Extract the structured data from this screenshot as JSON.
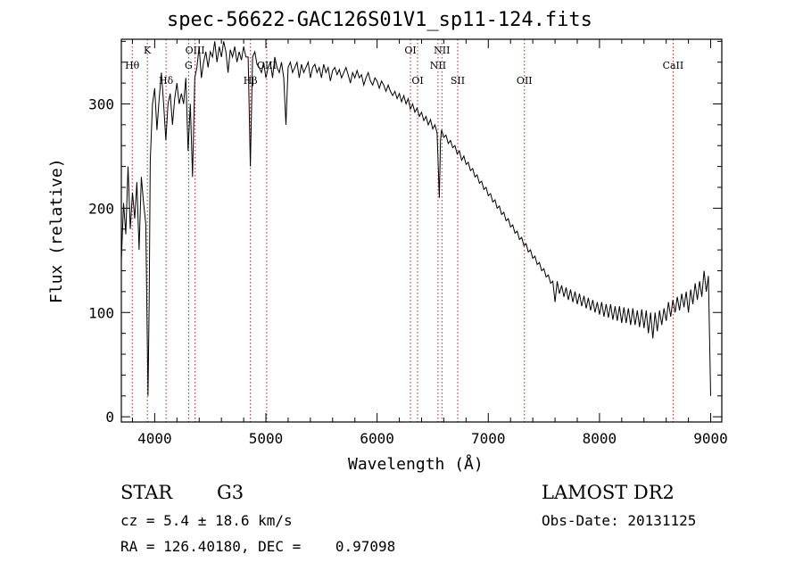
{
  "chart_data": {
    "type": "line",
    "title": "spec-56622-GAC126S01V1_sp11-124.fits",
    "xlabel": "Wavelength (Å)",
    "ylabel": "Flux (relative)",
    "xlim": [
      3700,
      9100
    ],
    "ylim": [
      -5,
      362
    ],
    "xticks": [
      4000,
      5000,
      6000,
      7000,
      8000,
      9000
    ],
    "yticks": [
      0,
      100,
      200,
      300
    ],
    "grid": false,
    "series": [
      {
        "points": [
          [
            3700,
            150
          ],
          [
            3720,
            205
          ],
          [
            3740,
            175
          ],
          [
            3760,
            240
          ],
          [
            3780,
            180
          ],
          [
            3800,
            215
          ],
          [
            3820,
            190
          ],
          [
            3840,
            225
          ],
          [
            3860,
            160
          ],
          [
            3880,
            230
          ],
          [
            3900,
            205
          ],
          [
            3920,
            185
          ],
          [
            3940,
            20
          ],
          [
            3950,
            110
          ],
          [
            3960,
            245
          ],
          [
            3980,
            300
          ],
          [
            4000,
            315
          ],
          [
            4020,
            275
          ],
          [
            4040,
            305
          ],
          [
            4060,
            330
          ],
          [
            4080,
            300
          ],
          [
            4100,
            265
          ],
          [
            4120,
            300
          ],
          [
            4140,
            310
          ],
          [
            4160,
            280
          ],
          [
            4180,
            305
          ],
          [
            4200,
            320
          ],
          [
            4220,
            300
          ],
          [
            4240,
            310
          ],
          [
            4260,
            300
          ],
          [
            4280,
            325
          ],
          [
            4300,
            255
          ],
          [
            4320,
            300
          ],
          [
            4340,
            230
          ],
          [
            4360,
            325
          ],
          [
            4380,
            335
          ],
          [
            4400,
            355
          ],
          [
            4420,
            325
          ],
          [
            4440,
            340
          ],
          [
            4460,
            350
          ],
          [
            4480,
            335
          ],
          [
            4500,
            350
          ],
          [
            4520,
            345
          ],
          [
            4540,
            360
          ],
          [
            4560,
            340
          ],
          [
            4580,
            355
          ],
          [
            4600,
            345
          ],
          [
            4620,
            360
          ],
          [
            4640,
            350
          ],
          [
            4660,
            330
          ],
          [
            4680,
            352
          ],
          [
            4700,
            345
          ],
          [
            4720,
            355
          ],
          [
            4740,
            340
          ],
          [
            4760,
            350
          ],
          [
            4780,
            342
          ],
          [
            4800,
            355
          ],
          [
            4820,
            345
          ],
          [
            4840,
            345
          ],
          [
            4860,
            240
          ],
          [
            4880,
            345
          ],
          [
            4900,
            350
          ],
          [
            4920,
            338
          ],
          [
            4940,
            335
          ],
          [
            4960,
            330
          ],
          [
            4980,
            340
          ],
          [
            5000,
            325
          ],
          [
            5020,
            335
          ],
          [
            5040,
            340
          ],
          [
            5060,
            325
          ],
          [
            5080,
            345
          ],
          [
            5100,
            335
          ],
          [
            5120,
            330
          ],
          [
            5140,
            340
          ],
          [
            5160,
            325
          ],
          [
            5180,
            280
          ],
          [
            5200,
            335
          ],
          [
            5220,
            340
          ],
          [
            5240,
            330
          ],
          [
            5260,
            335
          ],
          [
            5280,
            340
          ],
          [
            5300,
            325
          ],
          [
            5320,
            338
          ],
          [
            5340,
            330
          ],
          [
            5360,
            335
          ],
          [
            5380,
            340
          ],
          [
            5400,
            325
          ],
          [
            5420,
            335
          ],
          [
            5440,
            338
          ],
          [
            5460,
            330
          ],
          [
            5480,
            335
          ],
          [
            5500,
            325
          ],
          [
            5520,
            338
          ],
          [
            5540,
            330
          ],
          [
            5560,
            335
          ],
          [
            5580,
            322
          ],
          [
            5600,
            332
          ],
          [
            5620,
            335
          ],
          [
            5640,
            328
          ],
          [
            5660,
            333
          ],
          [
            5680,
            325
          ],
          [
            5700,
            330
          ],
          [
            5720,
            335
          ],
          [
            5740,
            328
          ],
          [
            5760,
            320
          ],
          [
            5780,
            330
          ],
          [
            5800,
            325
          ],
          [
            5820,
            332
          ],
          [
            5840,
            325
          ],
          [
            5860,
            328
          ],
          [
            5880,
            318
          ],
          [
            5900,
            325
          ],
          [
            5920,
            330
          ],
          [
            5940,
            322
          ],
          [
            5960,
            318
          ],
          [
            5980,
            325
          ],
          [
            6000,
            322
          ],
          [
            6020,
            315
          ],
          [
            6040,
            322
          ],
          [
            6060,
            318
          ],
          [
            6080,
            312
          ],
          [
            6100,
            318
          ],
          [
            6120,
            312
          ],
          [
            6140,
            308
          ],
          [
            6160,
            312
          ],
          [
            6180,
            305
          ],
          [
            6200,
            310
          ],
          [
            6220,
            302
          ],
          [
            6240,
            308
          ],
          [
            6260,
            300
          ],
          [
            6280,
            305
          ],
          [
            6300,
            295
          ],
          [
            6320,
            300
          ],
          [
            6340,
            292
          ],
          [
            6360,
            296
          ],
          [
            6380,
            288
          ],
          [
            6400,
            292
          ],
          [
            6420,
            284
          ],
          [
            6440,
            288
          ],
          [
            6460,
            280
          ],
          [
            6480,
            285
          ],
          [
            6500,
            276
          ],
          [
            6520,
            280
          ],
          [
            6540,
            272
          ],
          [
            6560,
            210
          ],
          [
            6570,
            265
          ],
          [
            6580,
            275
          ],
          [
            6600,
            268
          ],
          [
            6620,
            270
          ],
          [
            6640,
            262
          ],
          [
            6660,
            265
          ],
          [
            6680,
            258
          ],
          [
            6700,
            260
          ],
          [
            6720,
            252
          ],
          [
            6740,
            255
          ],
          [
            6760,
            246
          ],
          [
            6780,
            250
          ],
          [
            6800,
            242
          ],
          [
            6820,
            244
          ],
          [
            6840,
            236
          ],
          [
            6860,
            238
          ],
          [
            6880,
            230
          ],
          [
            6900,
            232
          ],
          [
            6920,
            224
          ],
          [
            6940,
            226
          ],
          [
            6960,
            218
          ],
          [
            6980,
            220
          ],
          [
            7000,
            212
          ],
          [
            7020,
            214
          ],
          [
            7040,
            206
          ],
          [
            7060,
            208
          ],
          [
            7080,
            200
          ],
          [
            7100,
            202
          ],
          [
            7120,
            194
          ],
          [
            7140,
            196
          ],
          [
            7160,
            188
          ],
          [
            7180,
            190
          ],
          [
            7200,
            182
          ],
          [
            7220,
            184
          ],
          [
            7240,
            176
          ],
          [
            7260,
            178
          ],
          [
            7280,
            170
          ],
          [
            7300,
            172
          ],
          [
            7320,
            164
          ],
          [
            7340,
            166
          ],
          [
            7360,
            158
          ],
          [
            7380,
            160
          ],
          [
            7400,
            152
          ],
          [
            7420,
            154
          ],
          [
            7440,
            146
          ],
          [
            7460,
            148
          ],
          [
            7480,
            140
          ],
          [
            7500,
            142
          ],
          [
            7520,
            134
          ],
          [
            7540,
            136
          ],
          [
            7560,
            128
          ],
          [
            7580,
            130
          ],
          [
            7600,
            110
          ],
          [
            7620,
            130
          ],
          [
            7640,
            118
          ],
          [
            7660,
            126
          ],
          [
            7680,
            115
          ],
          [
            7700,
            124
          ],
          [
            7720,
            112
          ],
          [
            7740,
            122
          ],
          [
            7760,
            110
          ],
          [
            7780,
            120
          ],
          [
            7800,
            108
          ],
          [
            7820,
            118
          ],
          [
            7840,
            106
          ],
          [
            7860,
            116
          ],
          [
            7880,
            104
          ],
          [
            7900,
            114
          ],
          [
            7920,
            102
          ],
          [
            7940,
            112
          ],
          [
            7960,
            100
          ],
          [
            7980,
            110
          ],
          [
            8000,
            98
          ],
          [
            8020,
            110
          ],
          [
            8040,
            96
          ],
          [
            8060,
            108
          ],
          [
            8080,
            95
          ],
          [
            8100,
            108
          ],
          [
            8120,
            93
          ],
          [
            8140,
            106
          ],
          [
            8160,
            92
          ],
          [
            8180,
            106
          ],
          [
            8200,
            90
          ],
          [
            8220,
            105
          ],
          [
            8240,
            90
          ],
          [
            8260,
            104
          ],
          [
            8280,
            88
          ],
          [
            8300,
            104
          ],
          [
            8320,
            88
          ],
          [
            8340,
            102
          ],
          [
            8360,
            86
          ],
          [
            8380,
            103
          ],
          [
            8400,
            85
          ],
          [
            8420,
            102
          ],
          [
            8440,
            80
          ],
          [
            8460,
            100
          ],
          [
            8480,
            75
          ],
          [
            8500,
            100
          ],
          [
            8520,
            82
          ],
          [
            8540,
            102
          ],
          [
            8560,
            88
          ],
          [
            8580,
            104
          ],
          [
            8600,
            92
          ],
          [
            8620,
            110
          ],
          [
            8640,
            96
          ],
          [
            8660,
            112
          ],
          [
            8680,
            100
          ],
          [
            8700,
            115
          ],
          [
            8720,
            102
          ],
          [
            8740,
            118
          ],
          [
            8760,
            105
          ],
          [
            8780,
            120
          ],
          [
            8800,
            100
          ],
          [
            8820,
            122
          ],
          [
            8840,
            108
          ],
          [
            8860,
            128
          ],
          [
            8880,
            112
          ],
          [
            8900,
            130
          ],
          [
            8920,
            115
          ],
          [
            8940,
            140
          ],
          [
            8960,
            120
          ],
          [
            8980,
            135
          ],
          [
            9000,
            20
          ]
        ]
      }
    ],
    "lines": [
      {
        "label": "Hθ",
        "wavelength": 3798,
        "row": 1
      },
      {
        "label": "K",
        "wavelength": 3934,
        "row": 0
      },
      {
        "label": "Hδ",
        "wavelength": 4102,
        "row": 3
      },
      {
        "label": "OIII",
        "wavelength": 4363,
        "row": 0
      },
      {
        "label": "G",
        "wavelength": 4305,
        "row": 1
      },
      {
        "label": "Hβ",
        "wavelength": 4861,
        "row": 3
      },
      {
        "label": "OIII",
        "wavelength": 5007,
        "row": 1
      },
      {
        "label": "OI",
        "wavelength": 6300,
        "row": 0
      },
      {
        "label": "OI",
        "wavelength": 6364,
        "row": 2
      },
      {
        "label": "NII",
        "wavelength": 6583,
        "row": 0
      },
      {
        "label": "NII",
        "wavelength": 6548,
        "row": 1
      },
      {
        "label": "SII",
        "wavelength": 6725,
        "row": 2
      },
      {
        "label": "OII",
        "wavelength": 7325,
        "row": 2
      },
      {
        "label": "CaII",
        "wavelength": 8662,
        "row": 1
      }
    ],
    "line_color": "#b22222"
  },
  "info": {
    "object_class": "STAR",
    "subclass": "G3",
    "survey": "LAMOST DR2",
    "redshift": "cz = 5.4 ± 18.6 km/s",
    "obs_date": "Obs-Date: 20131125",
    "coords": "RA = 126.40180, DEC =    0.97098"
  }
}
